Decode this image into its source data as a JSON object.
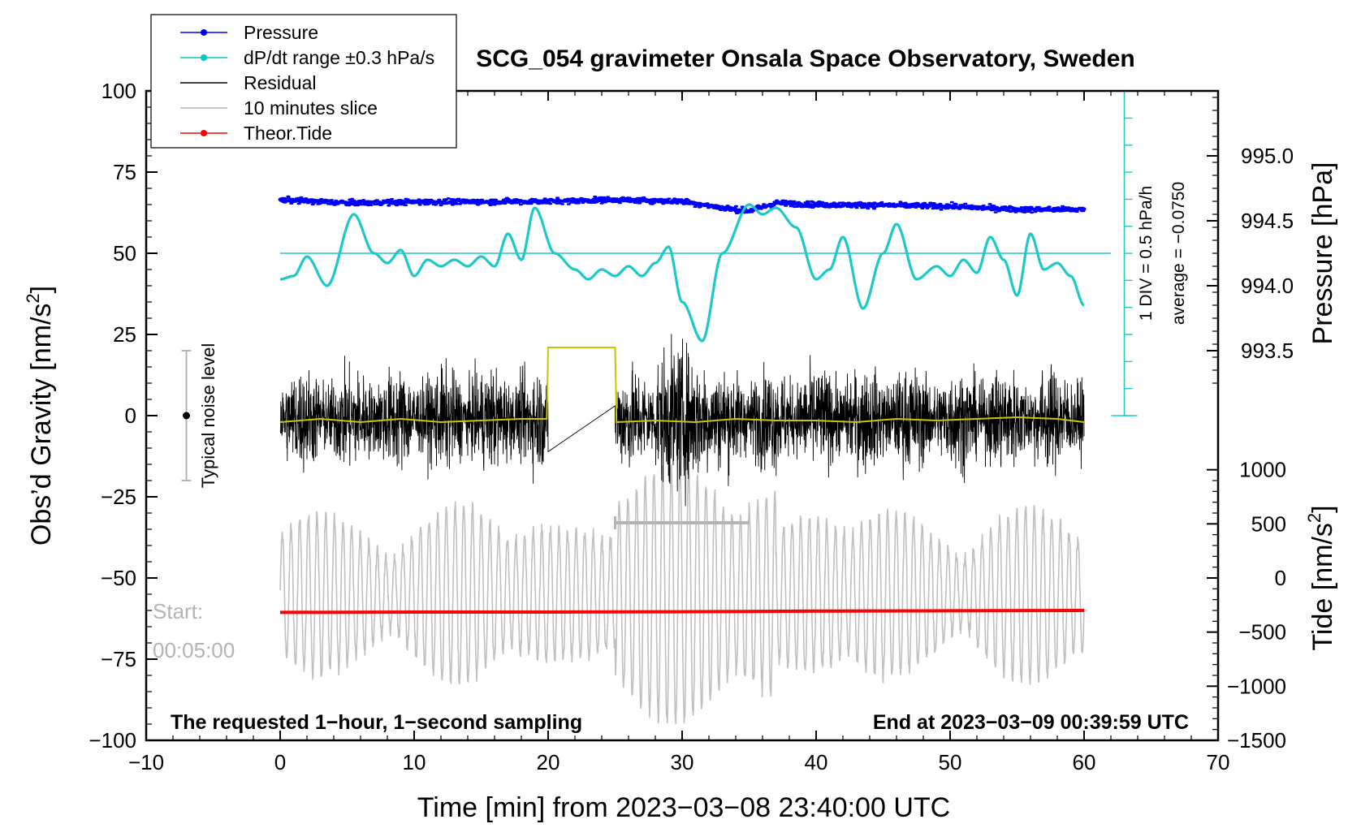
{
  "chart_data": {
    "type": "line",
    "title": "SCG_054 gravimeter Onsala Space Observatory, Sweden",
    "xlabel": "Time [min] from 2023−03−08 23:40:00 UTC",
    "ylabel_left": "Obs’d Gravity [nm/s",
    "ylabel_left_sup": "2",
    "ylabel_left_end": "]",
    "ylabel_right_top": "Pressure [hPa]",
    "ylabel_right_bottom": "Tide [nm/s",
    "ylabel_right_bottom_sup": "2",
    "ylabel_right_bottom_end": "]",
    "xlim": [
      -10,
      70
    ],
    "ylim": [
      -100,
      100
    ],
    "x_ticks": [
      -10,
      0,
      10,
      20,
      30,
      40,
      50,
      60,
      70
    ],
    "x_tick_labels": [
      "−10",
      "0",
      "10",
      "20",
      "30",
      "40",
      "50",
      "60",
      "70"
    ],
    "y_ticks": [
      100,
      75,
      50,
      25,
      0,
      -25,
      -50,
      -75,
      -100
    ],
    "y_tick_labels": [
      "100",
      "75",
      "50",
      "25",
      "0",
      "−25",
      "−50",
      "−75",
      "−100"
    ],
    "pressure_axis": {
      "ticks": [
        995.0,
        994.5,
        994.0,
        993.5
      ],
      "tick_labels": [
        "995.0",
        "994.5",
        "994.0",
        "993.5"
      ],
      "gravity_equivalent_at_995": 80,
      "gravity_per_hPa": 40
    },
    "tide_axis": {
      "ticks": [
        1000,
        500,
        0,
        -500,
        -1000,
        -1500
      ],
      "tick_labels": [
        "1000",
        "500",
        "0",
        "−500",
        "−1000",
        "−1500"
      ],
      "gravity_equivalent_at_0": -50,
      "gravity_per_unit": 0.03333
    },
    "legend": {
      "position": "top-left",
      "entries": [
        {
          "label": "Pressure",
          "color": "#0000ff",
          "marker": true
        },
        {
          "label": "dP/dt range ±0.3 hPa/s",
          "color": "#00c8c8",
          "marker": true
        },
        {
          "label": "Residual",
          "color": "#000000",
          "marker": false
        },
        {
          "label": "10 minutes slice",
          "color": "#b4b4b4",
          "marker": false
        },
        {
          "label": "Theor.Tide",
          "color": "#ff0000",
          "marker": true
        }
      ]
    },
    "annotations": {
      "noise_label": "Typical noise level",
      "noise_range": [
        -20,
        20
      ],
      "noise_x": -7,
      "start_label": "Start:",
      "start_time": "00:05:00",
      "footer_left": "The requested 1−hour, 1−second sampling",
      "footer_right": "End at 2023−03−09 00:39:59 UTC",
      "dpdt_div": "1 DIV = 0.5 hPa/h",
      "dpdt_average": "average = −0.0750",
      "dpdt_scale_x": 63,
      "dpdt_scale_range": [
        0,
        100
      ],
      "dpdt_baseline": 50,
      "slice_range_min": [
        25,
        35
      ],
      "slice_marker_level": -33
    },
    "series": [
      {
        "name": "Pressure",
        "color": "#0000ff",
        "x": [
          0,
          5,
          10,
          15,
          20,
          25,
          30,
          33,
          35,
          37,
          40,
          45,
          50,
          55,
          60
        ],
        "y": [
          66.5,
          65.5,
          65.8,
          65.9,
          66.0,
          66.5,
          66.0,
          64.0,
          63.0,
          65.5,
          65.0,
          64.8,
          64.5,
          63.5,
          63.5
        ]
      },
      {
        "name": "dP/dt",
        "color": "#1ec8c8",
        "x": [
          0,
          1,
          2,
          3.5,
          5.5,
          7,
          8,
          9,
          10,
          11,
          12,
          13,
          14,
          15,
          16,
          17,
          18,
          19,
          20.5,
          22,
          23,
          24,
          25,
          26,
          27,
          28,
          29,
          30,
          31.5,
          33,
          35,
          36,
          37,
          38.5,
          40,
          41,
          42,
          43.5,
          45,
          46,
          47.5,
          49,
          50,
          51,
          52,
          53,
          54,
          55,
          56,
          57,
          58,
          59,
          60
        ],
        "y": [
          42,
          43,
          49,
          40,
          62,
          50,
          47,
          51,
          43,
          48,
          46,
          48,
          46,
          49,
          46,
          56,
          48,
          64,
          50,
          45,
          42,
          45,
          43,
          46,
          43,
          47,
          52,
          35,
          23,
          50,
          65,
          62,
          64,
          58,
          42,
          45,
          55,
          33,
          50,
          59,
          42,
          46,
          43,
          48,
          44,
          55,
          48,
          37,
          56,
          45,
          47,
          43,
          34
        ]
      },
      {
        "name": "Residual (smoothed)",
        "color": "#c8c800",
        "x": [
          0,
          3,
          6,
          9,
          12,
          15,
          18,
          19.9,
          20,
          20.1,
          24.9,
          25,
          25.1,
          28,
          31,
          34,
          37,
          40,
          43,
          46,
          49,
          52,
          55,
          58,
          60
        ],
        "y": [
          -2,
          -1,
          -2,
          -1,
          -2,
          -1.5,
          -1,
          -1,
          21,
          21,
          21,
          21,
          -2,
          -1.5,
          -2,
          -1,
          -1.5,
          -1.5,
          -2,
          -1,
          -1.5,
          -1,
          -0.5,
          -1,
          -2
        ]
      },
      {
        "name": "Theor.Tide",
        "color": "#ff0000",
        "x": [
          0,
          10,
          20,
          30,
          35,
          40,
          50,
          60
        ],
        "y": [
          -60.6,
          -60.5,
          -60.5,
          -60.4,
          -60.3,
          -60.2,
          -60.1,
          -60.0
        ]
      }
    ]
  }
}
